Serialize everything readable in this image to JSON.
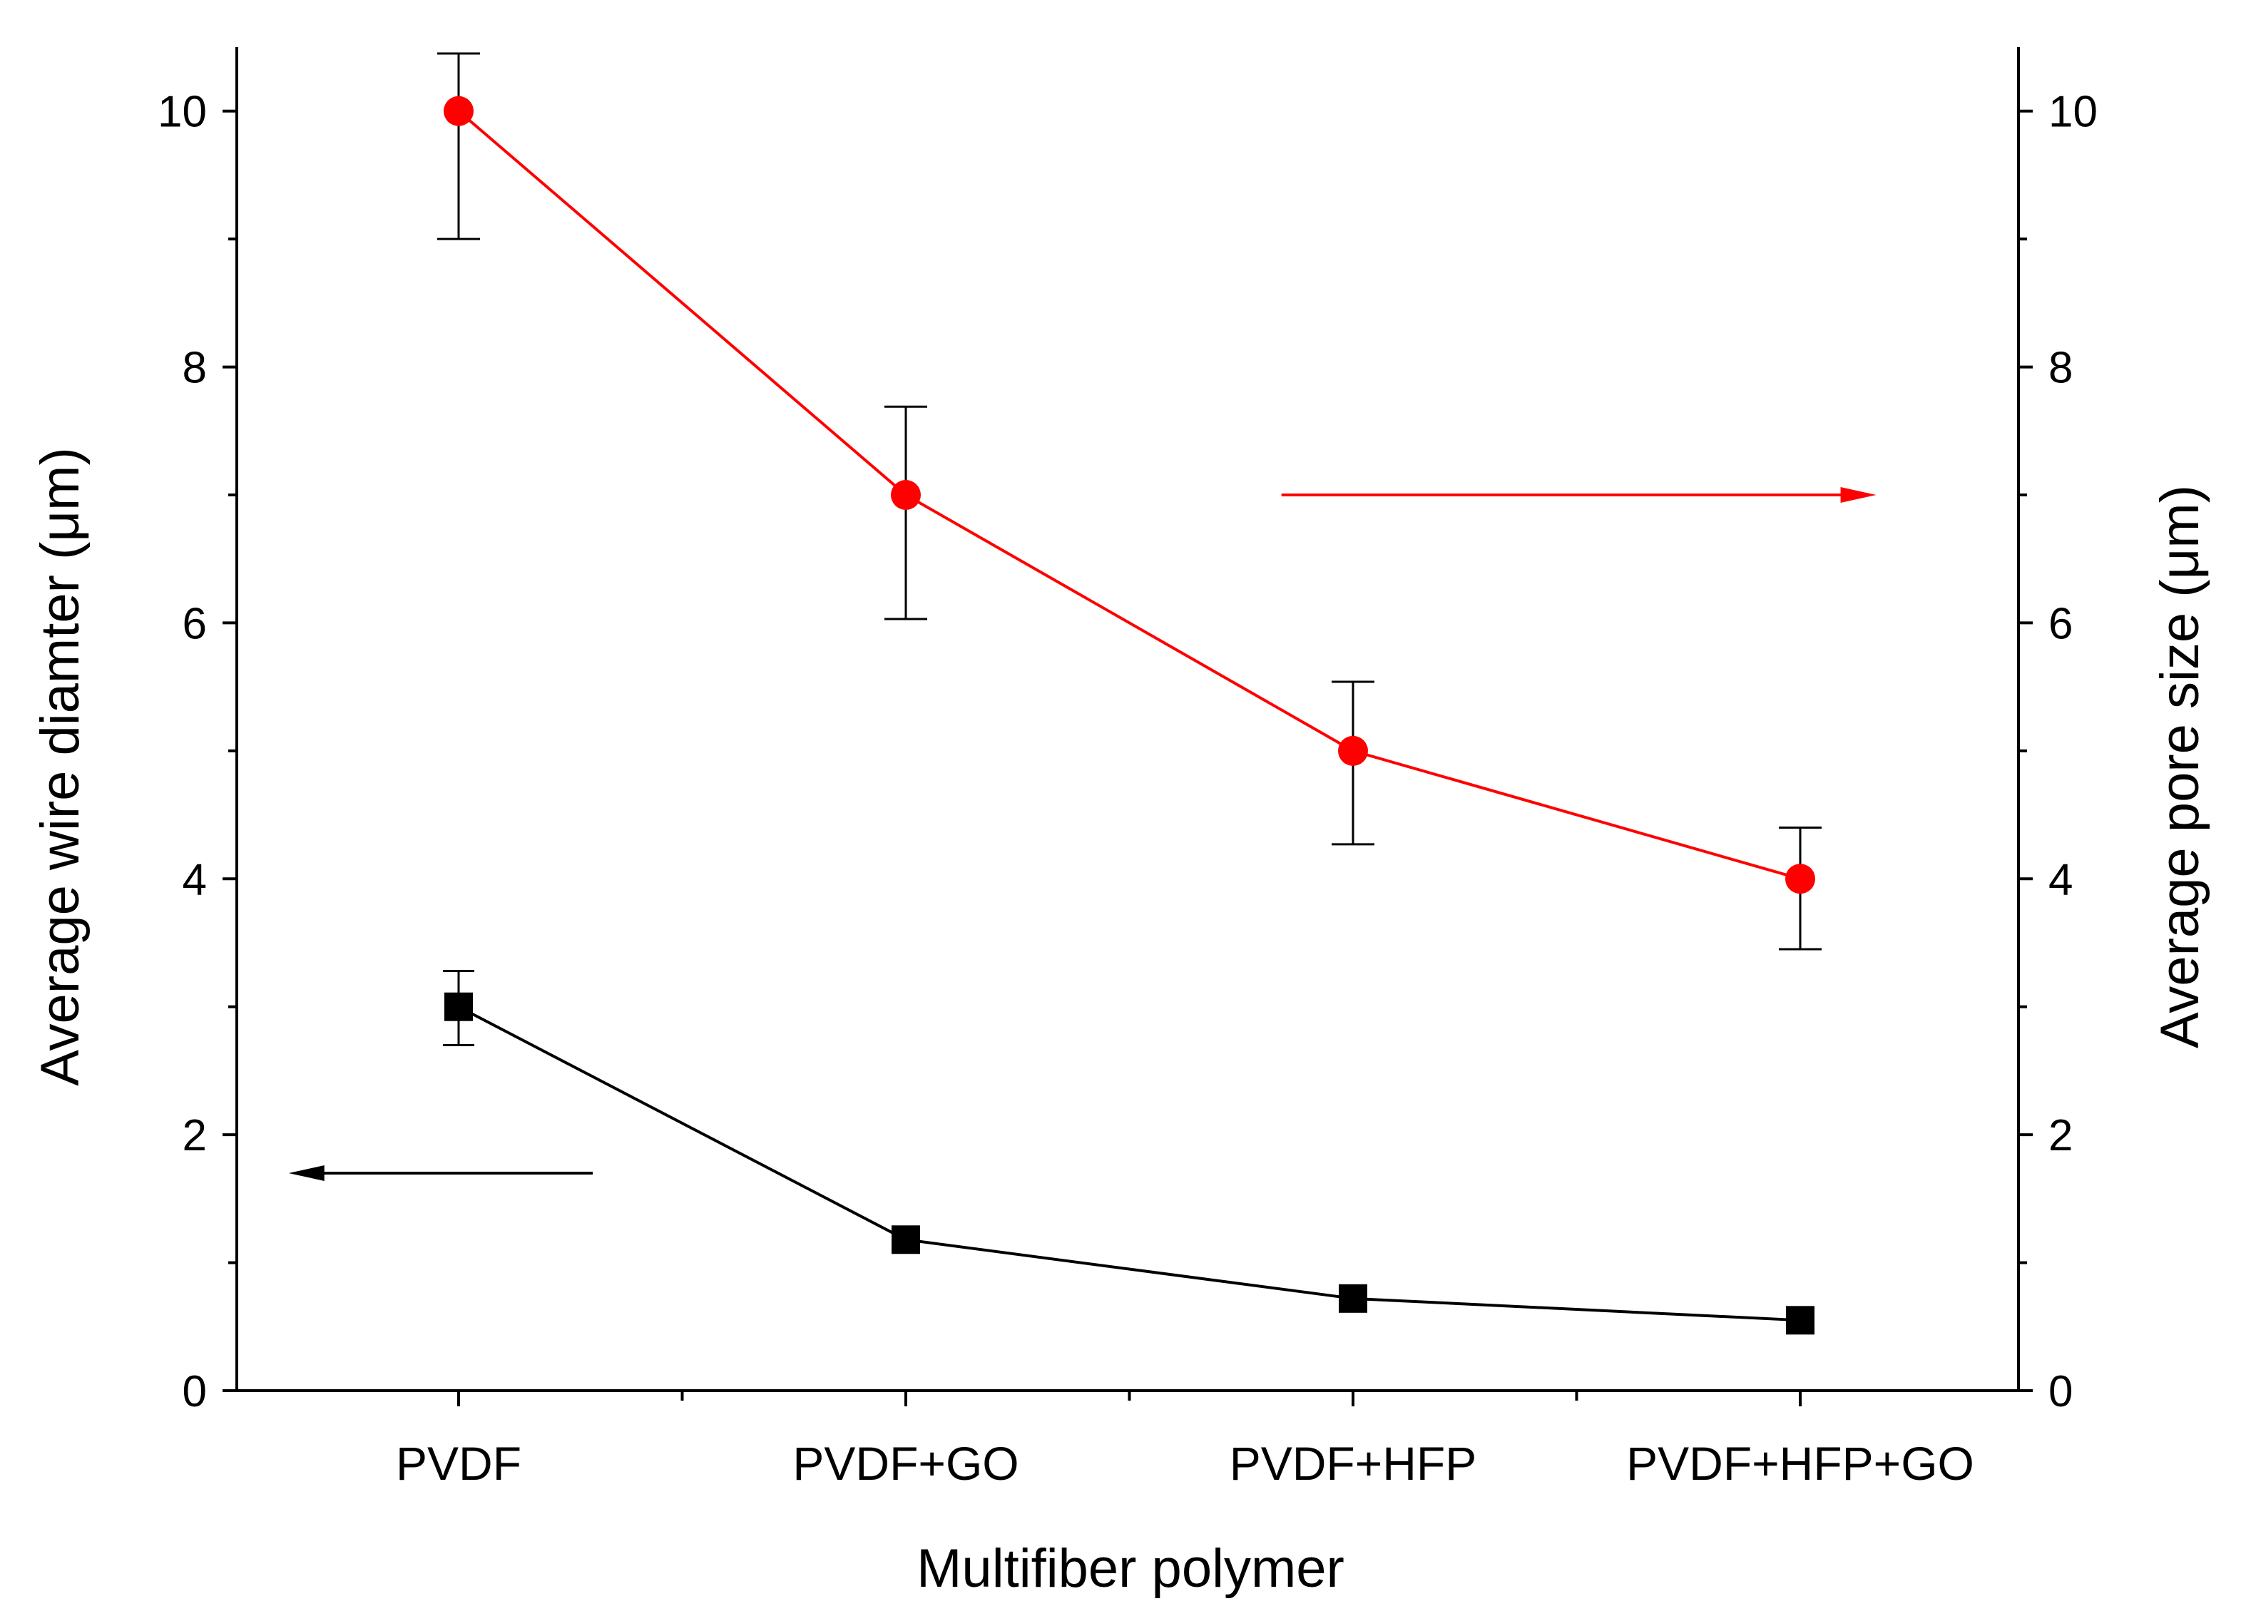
{
  "chart_data": {
    "type": "line",
    "title": "",
    "xlabel": "Multifiber polymer",
    "ylabel": "Average wire diamter (μm)",
    "y2label": "Average pore size (μm)",
    "categories": [
      "PVDF",
      "PVDF+GO",
      "PVDF+HFP",
      "PVDF+HFP+GO"
    ],
    "ylim": [
      0,
      10.5
    ],
    "y2lim": [
      0,
      10.5
    ],
    "yticks": [
      0,
      2,
      4,
      6,
      8,
      10
    ],
    "y2ticks": [
      0,
      2,
      4,
      6,
      8,
      10
    ],
    "grid": false,
    "legend": "none",
    "series": [
      {
        "name": "Average wire diameter",
        "axis": "left",
        "marker": "square",
        "color": "#000000",
        "values": [
          3.0,
          1.18,
          0.72,
          0.55
        ],
        "error_low": [
          2.7,
          null,
          null,
          null
        ],
        "error_high": [
          3.28,
          null,
          null,
          null
        ]
      },
      {
        "name": "Average pore size",
        "axis": "right",
        "marker": "circle",
        "color": "#ff0000",
        "values": [
          10.0,
          7.0,
          5.0,
          4.0
        ],
        "error_low": [
          9.0,
          6.03,
          4.27,
          3.45
        ],
        "error_high": [
          10.45,
          7.69,
          5.54,
          4.4
        ]
      }
    ],
    "annotations": [
      {
        "type": "arrow",
        "direction": "left",
        "points_to": "left axis",
        "color": "#000000",
        "y_value": 1.7,
        "x_category_from": 0.3,
        "x_category_to": -0.38
      },
      {
        "type": "arrow",
        "direction": "right",
        "points_to": "right axis",
        "color": "#ff0000",
        "y_value": 7.0,
        "x_category_from": 1.84,
        "x_category_to": 3.17
      }
    ]
  }
}
